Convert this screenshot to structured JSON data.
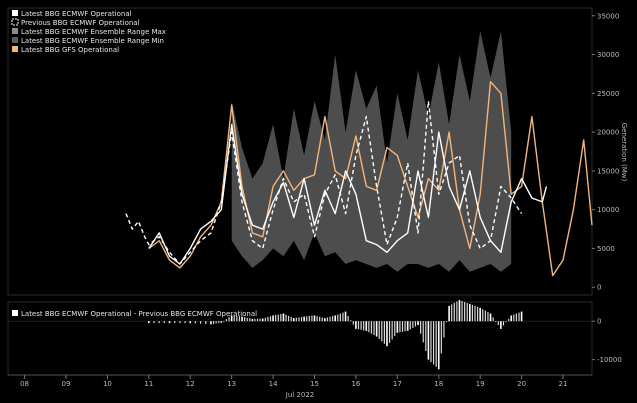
{
  "chart_data": [
    {
      "type": "line",
      "ylabel": "Generation (Mw)",
      "xlabel": "Jul 2022",
      "x_ticks": [
        "08",
        "09",
        "10",
        "11",
        "12",
        "13",
        "14",
        "15",
        "16",
        "17",
        "18",
        "19",
        "20",
        "21"
      ],
      "xlim": [
        7.6,
        21.7
      ],
      "ylim": [
        -1000,
        36000
      ],
      "y_ticks": [
        0,
        5000,
        10000,
        15000,
        20000,
        25000,
        30000,
        35000
      ],
      "legend": [
        {
          "label": "Latest BBG ECMWF Operational",
          "color": "#ffffff"
        },
        {
          "label": "Previous BBG ECMWF Operational",
          "color": "#ffffff"
        },
        {
          "label": "Latest BBG ECMWF Ensemble Range Max",
          "color": "#8c8c8c"
        },
        {
          "label": "Latest BBG ECMWF Ensemble Range Min",
          "color": "#5a5a5a"
        },
        {
          "label": "Latest BBG GFS Operational",
          "color": "#f2b57e"
        }
      ],
      "series": [
        {
          "name": "Ensemble Range Max",
          "color": "#4d4d4d",
          "x": [
            13.0,
            13.25,
            13.5,
            13.75,
            14.0,
            14.25,
            14.5,
            14.75,
            15.0,
            15.25,
            15.5,
            15.75,
            16.0,
            16.25,
            16.5,
            16.75,
            17.0,
            17.25,
            17.5,
            17.75,
            18.0,
            18.25,
            18.5,
            18.75,
            19.0,
            19.25,
            19.5,
            19.75
          ],
          "y": [
            24000,
            18000,
            14000,
            16000,
            21000,
            14000,
            23000,
            17000,
            24000,
            19000,
            30000,
            20000,
            28000,
            23000,
            26000,
            16000,
            25000,
            19000,
            28000,
            22000,
            29000,
            21000,
            30000,
            24000,
            33000,
            27000,
            33000,
            20000
          ]
        },
        {
          "name": "Ensemble Range Min",
          "color": "#4d4d4d",
          "x": [
            13.0,
            13.25,
            13.5,
            13.75,
            14.0,
            14.25,
            14.5,
            14.75,
            15.0,
            15.25,
            15.5,
            15.75,
            16.0,
            16.25,
            16.5,
            16.75,
            17.0,
            17.25,
            17.5,
            17.75,
            18.0,
            18.25,
            18.5,
            18.75,
            19.0,
            19.25,
            19.5,
            19.75
          ],
          "y": [
            6000,
            4000,
            2500,
            3500,
            5000,
            4000,
            6000,
            3500,
            7000,
            4000,
            4500,
            3000,
            3500,
            3000,
            2500,
            3000,
            2000,
            3000,
            3000,
            2500,
            3000,
            2000,
            3500,
            2000,
            2500,
            3000,
            2000,
            3000
          ]
        },
        {
          "name": "Latest BBG ECMWF Operational",
          "color": "#ffffff",
          "x": [
            11.0,
            11.25,
            11.5,
            11.75,
            12.0,
            12.25,
            12.5,
            12.75,
            13.0,
            13.25,
            13.5,
            13.75,
            14.0,
            14.25,
            14.5,
            14.75,
            15.0,
            15.25,
            15.5,
            15.75,
            16.0,
            16.25,
            16.5,
            16.75,
            17.0,
            17.25,
            17.5,
            17.75,
            18.0,
            18.25,
            18.5,
            18.75,
            19.0,
            19.25,
            19.5,
            19.75,
            20.0,
            20.25,
            20.5,
            20.6
          ],
          "y": [
            5000,
            7000,
            4000,
            3000,
            5000,
            7500,
            8500,
            10000,
            21000,
            12000,
            8000,
            7500,
            11000,
            13500,
            9000,
            14000,
            8000,
            12500,
            9500,
            15000,
            12000,
            6000,
            5500,
            4500,
            6000,
            7000,
            15000,
            9000,
            20000,
            13000,
            10000,
            15000,
            9000,
            6000,
            4500,
            11000,
            14000,
            11500,
            11000,
            13000
          ]
        },
        {
          "name": "Previous BBG ECMWF Operational",
          "color": "#ffffff",
          "x": [
            10.45,
            10.6,
            10.75,
            10.9,
            11.0,
            11.25,
            11.5,
            11.75,
            12.0,
            12.25,
            12.5,
            12.75,
            13.0,
            13.25,
            13.5,
            13.75,
            14.0,
            14.25,
            14.5,
            14.75,
            15.0,
            15.25,
            15.5,
            15.75,
            16.0,
            16.25,
            16.5,
            16.75,
            17.0,
            17.25,
            17.5,
            17.75,
            18.0,
            18.25,
            18.5,
            18.75,
            19.0,
            19.25,
            19.5,
            19.75,
            20.0
          ],
          "y": [
            9500,
            7500,
            8500,
            6500,
            5500,
            6500,
            4500,
            3000,
            4500,
            6000,
            7000,
            11000,
            20000,
            11000,
            6000,
            5000,
            10000,
            14000,
            11000,
            12000,
            6500,
            12000,
            14500,
            9500,
            17000,
            22000,
            13000,
            5500,
            9000,
            16000,
            7000,
            24000,
            12000,
            16000,
            17000,
            8000,
            5000,
            6000,
            13000,
            11500,
            9500
          ]
        },
        {
          "name": "Latest BBG GFS Operational",
          "color": "#f2b57e",
          "x": [
            11.0,
            11.25,
            11.5,
            11.75,
            12.0,
            12.25,
            12.5,
            12.75,
            13.0,
            13.25,
            13.5,
            13.75,
            14.0,
            14.25,
            14.5,
            14.75,
            15.0,
            15.25,
            15.5,
            15.75,
            16.0,
            16.25,
            16.5,
            16.75,
            17.0,
            17.25,
            17.5,
            17.75,
            18.0,
            18.25,
            18.5,
            18.75,
            19.0,
            19.25,
            19.5,
            19.75,
            20.0,
            20.25,
            20.5,
            20.75,
            21.0,
            21.25,
            21.5,
            21.7
          ],
          "y": [
            5000,
            6000,
            3500,
            2500,
            4000,
            6500,
            8000,
            11000,
            23500,
            13000,
            7000,
            6500,
            13000,
            15000,
            12500,
            14000,
            14500,
            22000,
            15000,
            14000,
            19500,
            13000,
            12500,
            18000,
            17000,
            13000,
            9000,
            14000,
            12500,
            20000,
            10000,
            5000,
            12000,
            26500,
            25000,
            12000,
            13000,
            22000,
            11000,
            1500,
            3500,
            10000,
            19000,
            8000
          ]
        }
      ]
    },
    {
      "type": "bar",
      "legend": [
        {
          "label": "Latest BBG ECMWF Operational - Previous BBG ECMWF Operational",
          "color": "#ffffff"
        }
      ],
      "ylim": [
        -14000,
        5000
      ],
      "y_ticks": [
        0,
        -10000
      ],
      "series": [
        {
          "name": "Difference",
          "color": "#ffffff",
          "x": [
            11.0,
            11.5,
            12.0,
            12.5,
            12.75,
            13.0,
            13.25,
            13.5,
            13.75,
            14.0,
            14.25,
            14.5,
            14.75,
            15.0,
            15.25,
            15.5,
            15.75,
            16.0,
            16.25,
            16.5,
            16.75,
            17.0,
            17.25,
            17.5,
            17.75,
            18.0,
            18.25,
            18.5,
            18.75,
            19.0,
            19.25,
            19.5,
            19.75,
            20.0
          ],
          "y": [
            -500,
            -500,
            -500,
            -800,
            -400,
            1500,
            1200,
            600,
            700,
            1500,
            2000,
            800,
            1200,
            1500,
            800,
            1500,
            2500,
            -2000,
            -2500,
            -4000,
            -6500,
            -3000,
            -2500,
            -1000,
            -10000,
            -12500,
            4000,
            5500,
            4500,
            3500,
            2000,
            -2000,
            1500,
            2500
          ]
        }
      ]
    }
  ]
}
